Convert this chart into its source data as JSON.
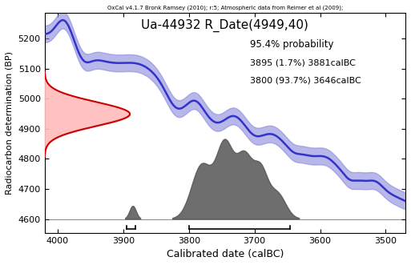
{
  "title": "Ua-44932 R_Date(4949,40)",
  "subtitle": "OxCal v4.1.7 Bronk Ramsey (2010); r:5; Atmospheric data from Reimer et al (2009);",
  "xlabel": "Calibrated date (calBC)",
  "ylabel": "Radiocarbon determination (BP)",
  "xlim": [
    4020,
    3470
  ],
  "ylim": [
    4555,
    5285
  ],
  "yticks": [
    4600,
    4700,
    4800,
    4900,
    5000,
    5100,
    5200
  ],
  "xticks": [
    4000,
    3900,
    3800,
    3700,
    3600,
    3500
  ],
  "annotation_lines": [
    "95.4% probability",
    "3895 (1.7%) 3881calBC",
    "3800 (93.7%) 3646calBC"
  ],
  "calibration_curve_color": "#3333cc",
  "calibration_band_color": "#8888dd",
  "pdf_color": "#cc0000",
  "pdf_fill_color": "#ffbbbb",
  "posterior_color": "#555555",
  "background_color": "#ffffff",
  "mean_bp": 4949,
  "sigma_bp": 40,
  "bracket1_xmin": 3895,
  "bracket1_xmax": 3881,
  "bracket2_xmin": 3800,
  "bracket2_xmax": 3646
}
